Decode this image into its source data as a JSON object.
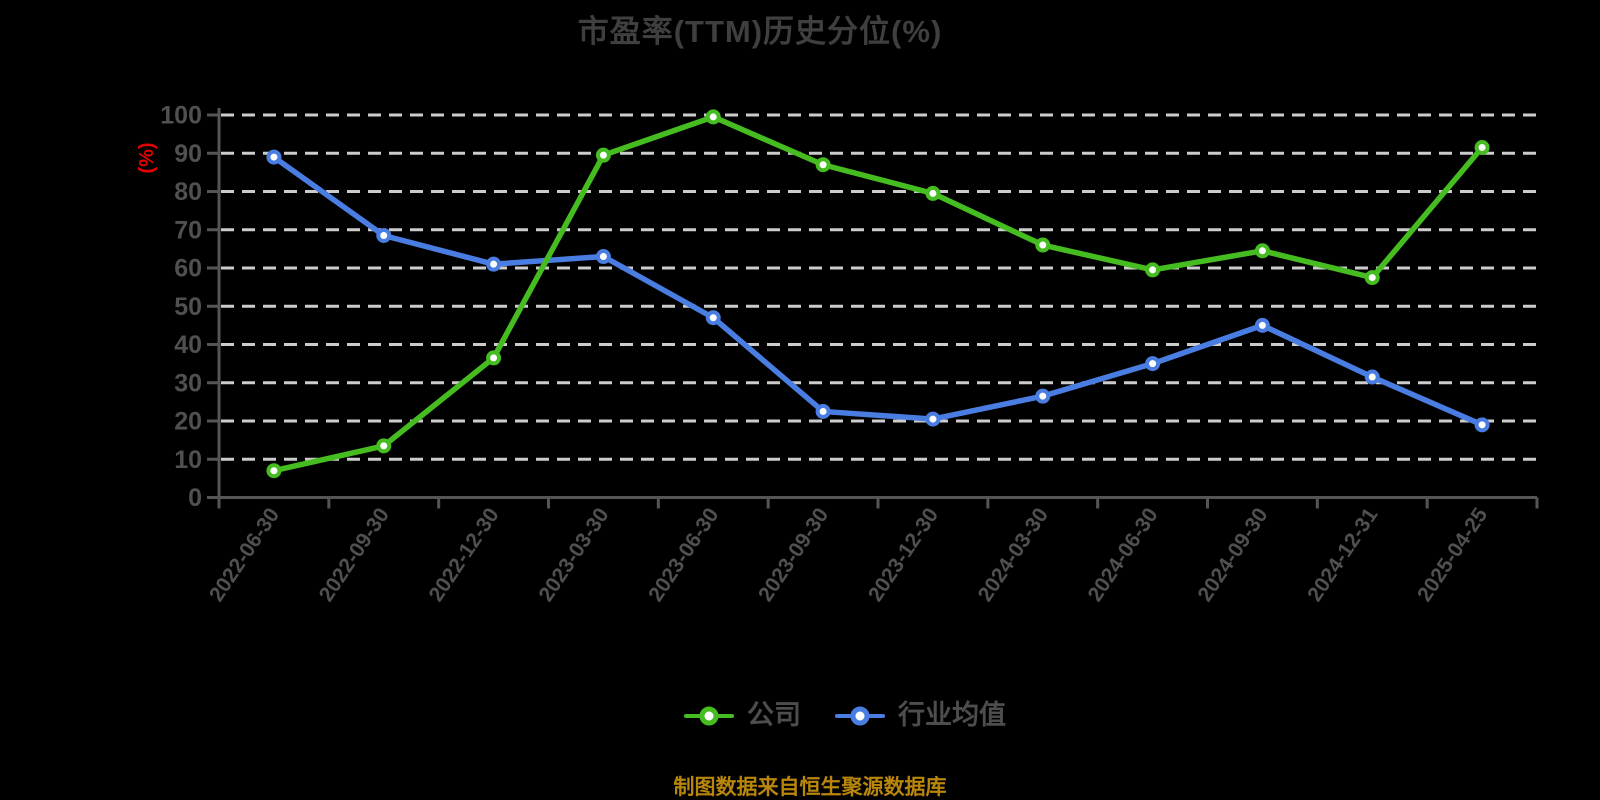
{
  "chart": {
    "title": "市盈率(TTM)历史分位(%)",
    "y_axis_unit": "(%)",
    "source_note": "制图数据来自恒生聚源数据库",
    "legend": [
      {
        "label": "公司",
        "color": "#45bc20"
      },
      {
        "label": "行业均值",
        "color": "#4a7de2"
      }
    ]
  },
  "chart_data": {
    "type": "line",
    "title": "市盈率(TTM)历史分位(%)",
    "xlabel": "",
    "ylabel": "(%)",
    "categories": [
      "2022-06-30",
      "2022-09-30",
      "2022-12-30",
      "2023-03-30",
      "2023-06-30",
      "2023-09-30",
      "2023-12-30",
      "2024-03-30",
      "2024-06-30",
      "2024-09-30",
      "2024-12-31",
      "2025-04-25"
    ],
    "series": [
      {
        "name": "公司",
        "color": "#45bc20",
        "values": [
          7,
          13.5,
          36.5,
          89.5,
          99.5,
          87,
          79.5,
          66,
          59.5,
          64.5,
          57.5,
          91.5
        ]
      },
      {
        "name": "行业均值",
        "color": "#4a7de2",
        "values": [
          89,
          68.5,
          61,
          63,
          47,
          22.5,
          20.5,
          26.5,
          35,
          45,
          31.5,
          19
        ]
      }
    ],
    "ylim": [
      0,
      100
    ],
    "yticks": [
      0,
      10,
      20,
      30,
      40,
      50,
      60,
      70,
      80,
      90,
      100
    ],
    "grid": true,
    "grid_style": "dashed",
    "legend_position": "bottom"
  },
  "colors": {
    "background": "#000000",
    "title_text": "#3f3f3f",
    "axis_label": "#505050",
    "axis_line": "#555555",
    "gridline": "#cccccc",
    "y_unit_label": "#e60000",
    "source_text": "#b8860b",
    "legend_text": "#4d4d4d",
    "marker_fill": "#ffffff"
  }
}
